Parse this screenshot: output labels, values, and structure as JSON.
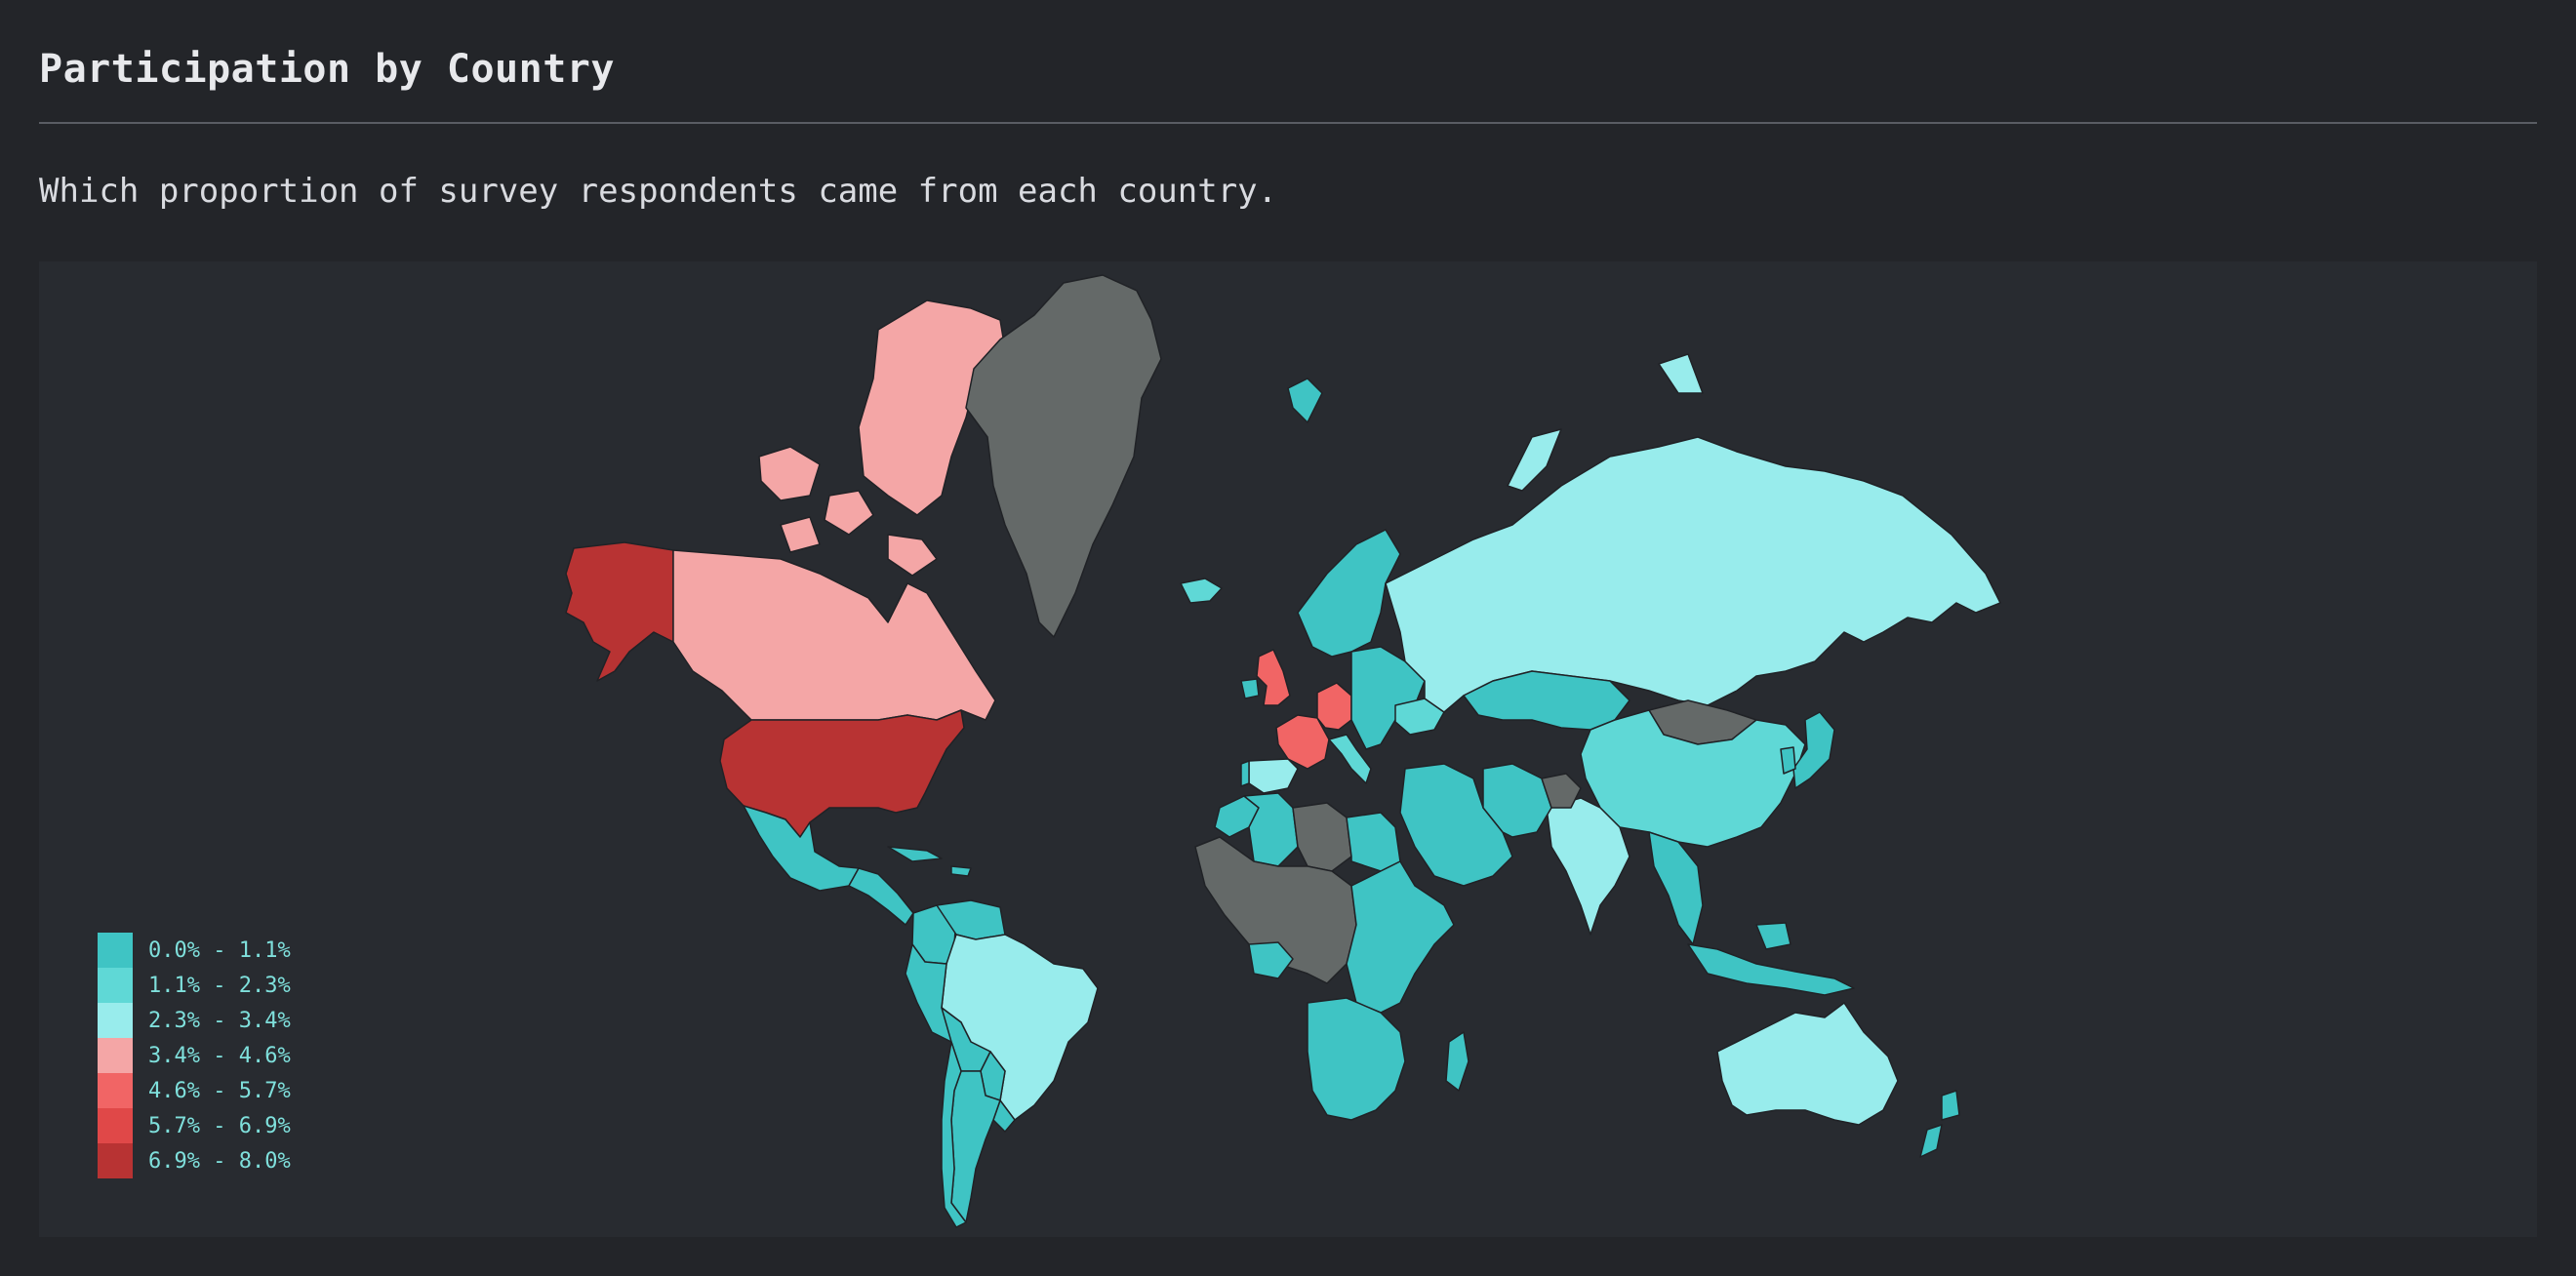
{
  "header": {
    "title": "Participation by Country",
    "subtitle": "Which proportion of survey respondents came from each country."
  },
  "colors": {
    "no_data": "#646968",
    "bins": [
      "#3fc4c4",
      "#5fd8d6",
      "#98ecec",
      "#f4a6a6",
      "#f16565",
      "#e04848",
      "#b83333"
    ]
  },
  "legend": {
    "items": [
      {
        "label": "0.0% - 1.1%",
        "color": "#3fc4c4"
      },
      {
        "label": "1.1% - 2.3%",
        "color": "#5fd8d6"
      },
      {
        "label": "2.3% - 3.4%",
        "color": "#98ecec"
      },
      {
        "label": "3.4% - 4.6%",
        "color": "#f4a6a6"
      },
      {
        "label": "4.6% - 5.7%",
        "color": "#f16565"
      },
      {
        "label": "5.7% - 6.9%",
        "color": "#e04848"
      },
      {
        "label": "6.9% - 8.0%",
        "color": "#b83333"
      }
    ]
  },
  "map_data": {
    "type": "choropleth",
    "regions": [
      {
        "name": "Alaska (United States)",
        "bin": 6
      },
      {
        "name": "Canada",
        "bin": 3
      },
      {
        "name": "United States",
        "bin": 6
      },
      {
        "name": "Greenland",
        "bin": null
      },
      {
        "name": "Mexico",
        "bin": 0
      },
      {
        "name": "Central America",
        "bin": 0
      },
      {
        "name": "Caribbean",
        "bin": 0
      },
      {
        "name": "Colombia",
        "bin": 0
      },
      {
        "name": "Venezuela",
        "bin": 0
      },
      {
        "name": "Brazil",
        "bin": 2
      },
      {
        "name": "Peru",
        "bin": 0
      },
      {
        "name": "Bolivia",
        "bin": 0
      },
      {
        "name": "Paraguay",
        "bin": 0
      },
      {
        "name": "Uruguay",
        "bin": 0
      },
      {
        "name": "Argentina",
        "bin": 0
      },
      {
        "name": "Chile",
        "bin": 0
      },
      {
        "name": "Iceland",
        "bin": 1
      },
      {
        "name": "United Kingdom",
        "bin": 4
      },
      {
        "name": "Ireland",
        "bin": 0
      },
      {
        "name": "France",
        "bin": 4
      },
      {
        "name": "Germany",
        "bin": 4
      },
      {
        "name": "Spain",
        "bin": 2
      },
      {
        "name": "Portugal",
        "bin": 0
      },
      {
        "name": "Italy",
        "bin": 1
      },
      {
        "name": "Scandinavia",
        "bin": 0
      },
      {
        "name": "Svalbard",
        "bin": 0
      },
      {
        "name": "Eastern Europe",
        "bin": 0
      },
      {
        "name": "Ukraine",
        "bin": 1
      },
      {
        "name": "Russia",
        "bin": 2
      },
      {
        "name": "Kazakhstan",
        "bin": 0
      },
      {
        "name": "Mongolia",
        "bin": null
      },
      {
        "name": "China",
        "bin": 1
      },
      {
        "name": "India",
        "bin": 2
      },
      {
        "name": "Middle East",
        "bin": 0
      },
      {
        "name": "Iran",
        "bin": 0
      },
      {
        "name": "Afghanistan",
        "bin": null
      },
      {
        "name": "Southeast Asia",
        "bin": 0
      },
      {
        "name": "Indonesia",
        "bin": 0
      },
      {
        "name": "Japan",
        "bin": 0
      },
      {
        "name": "Korea",
        "bin": 0
      },
      {
        "name": "Australia",
        "bin": 2
      },
      {
        "name": "New Zealand",
        "bin": 0
      },
      {
        "name": "Morocco",
        "bin": 0
      },
      {
        "name": "Algeria",
        "bin": 0
      },
      {
        "name": "Libya",
        "bin": null
      },
      {
        "name": "Egypt",
        "bin": 0
      },
      {
        "name": "Sahel and Central Africa",
        "bin": null
      },
      {
        "name": "Nigeria",
        "bin": 0
      },
      {
        "name": "East Africa",
        "bin": 0
      },
      {
        "name": "Southern Africa",
        "bin": 0
      },
      {
        "name": "Madagascar",
        "bin": 0
      }
    ]
  }
}
